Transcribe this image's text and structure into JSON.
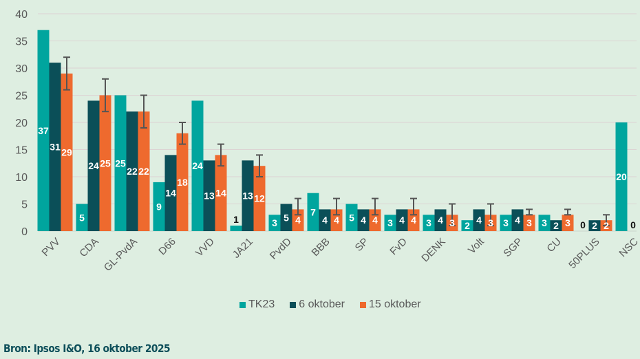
{
  "chart_data": {
    "type": "bar",
    "title": "",
    "xlabel": "",
    "ylabel": "",
    "ylim": [
      0,
      40
    ],
    "yticks": [
      0,
      5,
      10,
      15,
      20,
      25,
      30,
      35,
      40
    ],
    "grid": true,
    "legend_position": "bottom",
    "categories": [
      "PVV",
      "CDA",
      "GL-PvdA",
      "D66",
      "VVD",
      "JA21",
      "PvdD",
      "BBB",
      "SP",
      "FvD",
      "DENK",
      "Volt",
      "SGP",
      "CU",
      "50PLUS",
      "NSC"
    ],
    "series": [
      {
        "name": "TK23",
        "color": "#00a59e",
        "label_color": "#ffffff",
        "values": [
          37,
          5,
          25,
          9,
          24,
          1,
          3,
          7,
          5,
          3,
          3,
          2,
          3,
          3,
          0,
          20
        ]
      },
      {
        "name": "6 oktober",
        "color": "#0b4f58",
        "label_color": "#ffffff",
        "values": [
          31,
          24,
          22,
          14,
          13,
          13,
          5,
          4,
          4,
          4,
          4,
          4,
          4,
          2,
          2,
          0
        ]
      },
      {
        "name": "15 oktober",
        "color": "#ee6a2e",
        "label_color": "#ffffff",
        "values": [
          29,
          25,
          22,
          18,
          14,
          12,
          4,
          4,
          4,
          4,
          3,
          3,
          3,
          3,
          2,
          null
        ],
        "error_bars": [
          [
            26,
            32
          ],
          [
            22,
            28
          ],
          [
            19,
            25
          ],
          [
            16,
            20
          ],
          [
            12,
            16
          ],
          [
            10,
            14
          ],
          [
            3,
            6
          ],
          [
            3,
            6
          ],
          [
            3,
            6
          ],
          [
            3,
            6
          ],
          [
            1,
            5
          ],
          [
            1,
            5
          ],
          [
            3,
            4
          ],
          [
            3,
            4
          ],
          [
            1,
            3
          ],
          null
        ]
      }
    ],
    "error_bar_color": "#555555"
  },
  "legend": {
    "items": [
      {
        "label": "TK23",
        "color": "#00a59e"
      },
      {
        "label": "6 oktober",
        "color": "#0b4f58"
      },
      {
        "label": "15 oktober",
        "color": "#ee6a2e"
      }
    ]
  },
  "source": "Bron: Ipsos I&O, 16 oktober 2025"
}
